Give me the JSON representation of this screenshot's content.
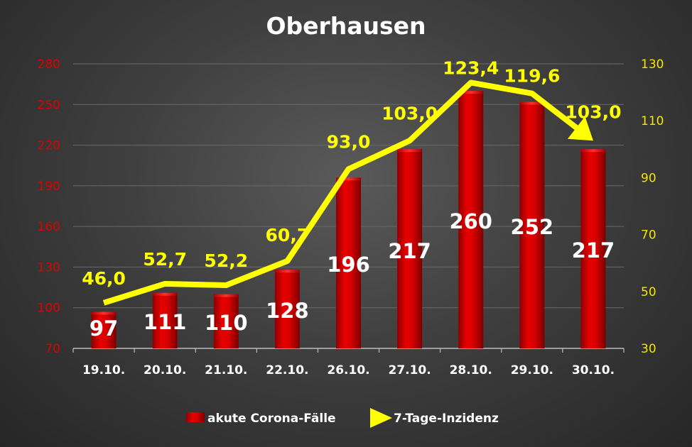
{
  "chart_data": {
    "type": "bar",
    "title": "Oberhausen",
    "categories": [
      "19.10.",
      "20.10.",
      "21.10.",
      "22.10.",
      "26.10.",
      "27.10.",
      "28.10.",
      "29.10.",
      "30.10."
    ],
    "series": [
      {
        "name": "akute Corona-Fälle",
        "type": "bar",
        "axis": "left",
        "values": [
          97,
          111,
          110,
          128,
          196,
          217,
          260,
          252,
          217
        ],
        "labels": [
          "97",
          "111",
          "110",
          "128",
          "196",
          "217",
          "260",
          "252",
          "217"
        ],
        "color": "#d40000"
      },
      {
        "name": "7-Tage-Inzidenz",
        "type": "line",
        "axis": "right",
        "values": [
          46.0,
          52.7,
          52.2,
          60.7,
          93.0,
          103.0,
          123.4,
          119.6,
          103.0
        ],
        "labels": [
          "46,0",
          "52,7",
          "52,2",
          "60,7",
          "93,0",
          "103,0",
          "123,4",
          "119,6",
          "103,0"
        ],
        "color": "#ffff00"
      }
    ],
    "y_left": {
      "min": 70,
      "max": 280,
      "ticks": [
        70,
        100,
        130,
        160,
        190,
        220,
        250,
        280
      ],
      "color": "#e00000"
    },
    "y_right": {
      "min": 30,
      "max": 130,
      "ticks": [
        30,
        50,
        70,
        90,
        110,
        130
      ],
      "color": "#f2e600"
    },
    "grid": true,
    "legend_position": "bottom"
  }
}
